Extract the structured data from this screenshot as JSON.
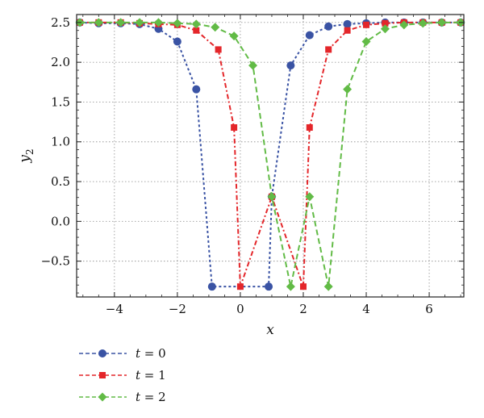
{
  "chart_data": {
    "type": "line",
    "xlabel": "x",
    "ylabel_main": "y",
    "ylabel_sub": "2",
    "xlim": [
      -5.2,
      7.1
    ],
    "ylim": [
      -0.95,
      2.6
    ],
    "xticks": [
      -4,
      -2,
      0,
      2,
      4,
      6
    ],
    "xtick_labels": [
      "−4",
      "−2",
      "0",
      "2",
      "4",
      "6"
    ],
    "yticks": [
      -0.5,
      0.0,
      0.5,
      1.0,
      1.5,
      2.0,
      2.5
    ],
    "ytick_labels": [
      "−0.5",
      "0.0",
      "0.5",
      "1.0",
      "1.5",
      "2.0",
      "2.5"
    ],
    "grid": true,
    "legend_position": "below-left",
    "series": [
      {
        "name": "t = 0",
        "var": "t",
        "value_text": " = 0",
        "color": "#3A53A4",
        "marker": "circle",
        "dash": "3,3",
        "x": [
          -5.1,
          -4.5,
          -3.8,
          -3.2,
          -2.6,
          -2.0,
          -1.4,
          -0.9,
          0.9,
          1.0,
          1.6,
          2.2,
          2.8,
          3.4,
          4.0,
          4.6,
          5.2,
          5.8,
          6.4,
          7.0
        ],
        "y": [
          2.5,
          2.49,
          2.49,
          2.48,
          2.42,
          2.26,
          1.66,
          -0.82,
          -0.82,
          0.31,
          1.96,
          2.34,
          2.45,
          2.48,
          2.49,
          2.5,
          2.5,
          2.5,
          2.5,
          2.5
        ]
      },
      {
        "name": "t = 1",
        "var": "t",
        "value_text": " = 1",
        "color": "#E4262A",
        "marker": "square",
        "dash": "6,3,2,3",
        "x": [
          -5.1,
          -4.5,
          -3.8,
          -3.2,
          -2.6,
          -2.0,
          -1.4,
          -0.7,
          -0.2,
          0.0,
          1.0,
          2.0,
          2.2,
          2.8,
          3.4,
          4.0,
          4.6,
          5.2,
          5.8,
          6.4,
          7.0
        ],
        "y": [
          2.5,
          2.5,
          2.5,
          2.49,
          2.48,
          2.47,
          2.4,
          2.16,
          1.18,
          -0.82,
          0.31,
          -0.82,
          1.18,
          2.16,
          2.4,
          2.47,
          2.49,
          2.5,
          2.5,
          2.5,
          2.5
        ]
      },
      {
        "name": "t = 2",
        "var": "t",
        "value_text": " = 2",
        "color": "#62BB46",
        "marker": "diamond",
        "dash": "7,4",
        "x": [
          -5.1,
          -4.5,
          -3.8,
          -3.2,
          -2.6,
          -2.0,
          -1.4,
          -0.8,
          -0.2,
          0.4,
          1.0,
          1.6,
          2.2,
          2.8,
          3.4,
          4.0,
          4.6,
          5.2,
          5.8,
          6.4,
          7.0
        ],
        "y": [
          2.5,
          2.5,
          2.5,
          2.5,
          2.5,
          2.49,
          2.48,
          2.44,
          2.33,
          1.96,
          0.31,
          -0.82,
          0.31,
          -0.82,
          1.66,
          2.26,
          2.42,
          2.47,
          2.49,
          2.5,
          2.5
        ]
      }
    ]
  }
}
